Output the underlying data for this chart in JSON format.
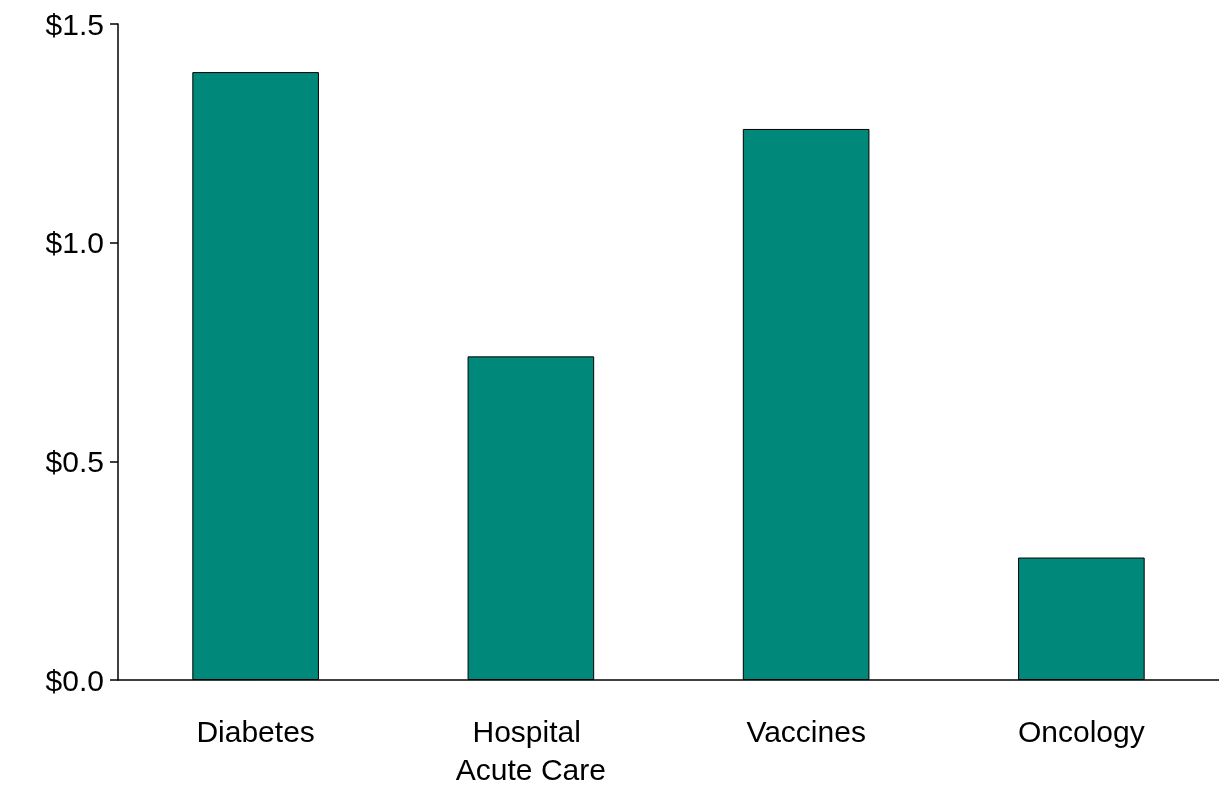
{
  "chart_data": {
    "type": "bar",
    "categories": [
      "Diabetes",
      "Hospital Acute Care",
      "Vaccines",
      "Oncology"
    ],
    "values": [
      1.39,
      0.74,
      1.26,
      0.28
    ],
    "color": "#00897b",
    "ylim": [
      0,
      1.5
    ],
    "yticks": [
      {
        "value": 0,
        "label": "$0.0"
      },
      {
        "value": 0.5,
        "label": "$0.5"
      },
      {
        "value": 1,
        "label": "$1.0"
      },
      {
        "value": 1.5,
        "label": "$1.5"
      }
    ],
    "grid": false
  }
}
